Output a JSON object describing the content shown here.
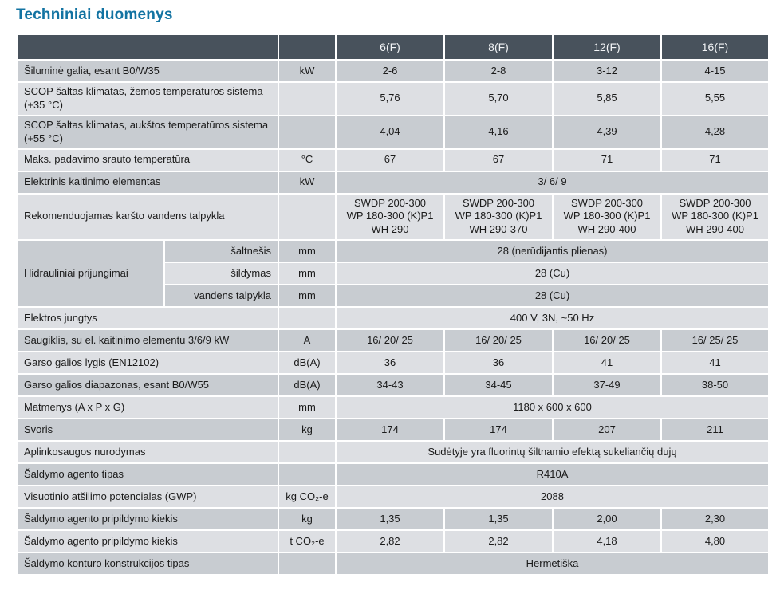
{
  "title": "Techniniai duomenys",
  "colors": {
    "title_accent": "#1273a2",
    "header_bg": "#48525c",
    "header_text": "#f2f4f6",
    "row_dark": "#c8ccd1",
    "row_light": "#dddfe3",
    "cell_border": "#ffffff"
  },
  "table": {
    "columns": [
      "6(F)",
      "8(F)",
      "12(F)",
      "16(F)"
    ],
    "rows": [
      {
        "label": "Šiluminė galia, esant B0/W35",
        "unit": "kW",
        "values": [
          "2-6",
          "2-8",
          "3-12",
          "4-15"
        ]
      },
      {
        "label": "SCOP šaltas klimatas, žemos temperatūros sistema (+35 °C)",
        "unit": "",
        "values": [
          "5,76",
          "5,70",
          "5,85",
          "5,55"
        ]
      },
      {
        "label": "SCOP šaltas klimatas, aukštos temperatūros sistema (+55 °C)",
        "unit": "",
        "values": [
          "4,04",
          "4,16",
          "4,39",
          "4,28"
        ]
      },
      {
        "label": "Maks. padavimo srauto temperatūra",
        "unit": "°C",
        "values": [
          "67",
          "67",
          "71",
          "71"
        ]
      },
      {
        "label": "Elektrinis kaitinimo elementas",
        "unit": "kW",
        "span_value": "3/ 6/ 9"
      },
      {
        "label": "Rekomenduojamas karšto vandens talpykla",
        "unit": "",
        "values": [
          "SWDP 200-300\nWP 180-300 (K)P1\nWH 290",
          "SWDP 200-300\nWP 180-300 (K)P1\nWH 290-370",
          "SWDP 200-300\nWP 180-300 (K)P1\nWH 290-400",
          "SWDP 200-300\nWP 180-300 (K)P1\nWH 290-400"
        ]
      },
      {
        "group": {
          "label": "Hidrauliniai prijungimai",
          "span": 3
        },
        "sublabel": "šaltnešis",
        "unit": "mm",
        "span_value": "28 (nerūdijantis plienas)"
      },
      {
        "sublabel": "šildymas",
        "unit": "mm",
        "span_value": "28 (Cu)"
      },
      {
        "sublabel": "vandens talpykla",
        "unit": "mm",
        "span_value": "28 (Cu)"
      },
      {
        "label": "Elektros jungtys",
        "unit": "",
        "span_value": "400 V, 3N, ~50 Hz"
      },
      {
        "label": "Saugiklis, su el. kaitinimo elementu 3/6/9 kW",
        "unit": "A",
        "values": [
          "16/ 20/ 25",
          "16/ 20/ 25",
          "16/ 20/ 25",
          "16/ 25/ 25"
        ]
      },
      {
        "label": "Garso galios lygis (EN12102)",
        "unit": "dB(A)",
        "values": [
          "36",
          "36",
          "41",
          "41"
        ]
      },
      {
        "label": "Garso galios diapazonas, esant B0/W55",
        "unit": "dB(A)",
        "values": [
          "34-43",
          "34-45",
          "37-49",
          "38-50"
        ]
      },
      {
        "label": "Matmenys (A x P x G)",
        "unit": "mm",
        "span_value": "1180 x 600 x 600"
      },
      {
        "label": "Svoris",
        "unit": "kg",
        "values": [
          "174",
          "174",
          "207",
          "211"
        ]
      },
      {
        "label": "Aplinkosaugos nurodymas",
        "unit": "",
        "span_value": "Sudėtyje yra fluorintų šiltnamio efektą sukeliančių dujų"
      },
      {
        "label": "Šaldymo agento tipas",
        "unit": "",
        "span_value": "R410A"
      },
      {
        "label": "Visuotinio atšilimo potencialas (GWP)",
        "unit": "kg CO₂-e",
        "span_value": "2088"
      },
      {
        "label": "Šaldymo agento pripildymo kiekis",
        "unit": "kg",
        "values": [
          "1,35",
          "1,35",
          "2,00",
          "2,30"
        ]
      },
      {
        "label": "Šaldymo agento pripildymo kiekis",
        "unit": "t CO₂-e",
        "values": [
          "2,82",
          "2,82",
          "4,18",
          "4,80"
        ]
      },
      {
        "label": "Šaldymo kontūro konstrukcijos tipas",
        "unit": "",
        "span_value": "Hermetiška"
      }
    ]
  }
}
